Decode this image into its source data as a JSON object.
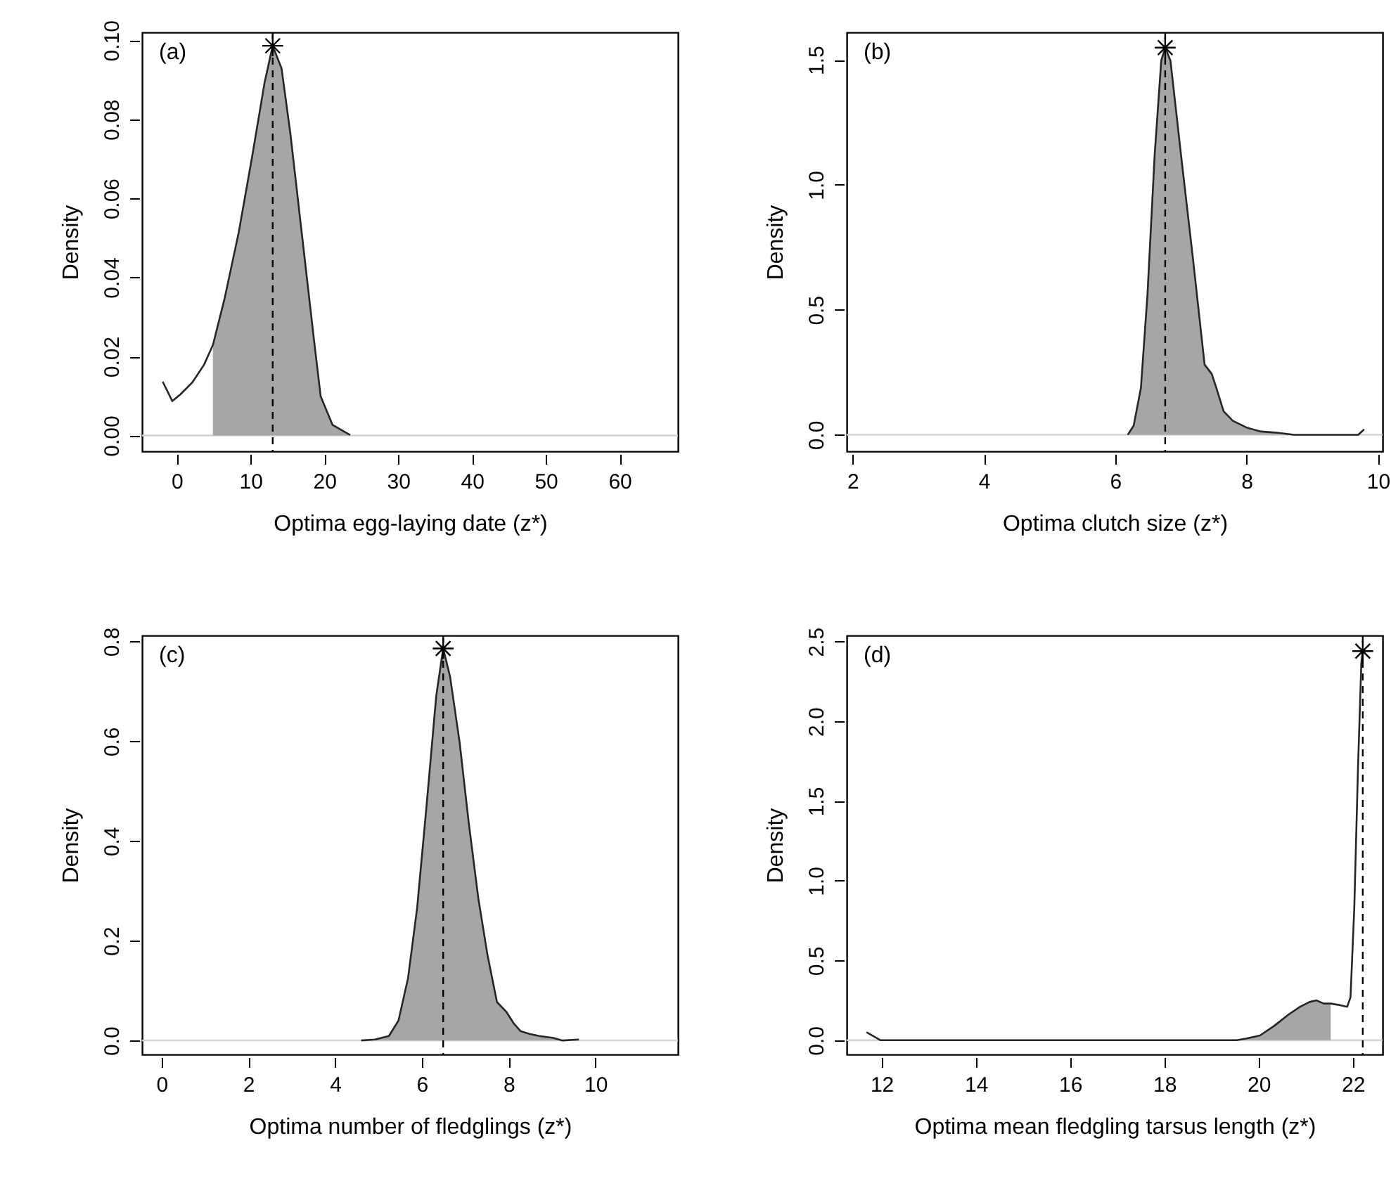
{
  "chart_data": [
    {
      "type": "line",
      "xlabel": "Optima egg-laying date (z*)",
      "ylabel": "Density",
      "annotations": [
        "(a)"
      ],
      "xlim": [
        -4.7,
        67.9
      ],
      "xticks": [
        0,
        10,
        20,
        30,
        40,
        50,
        60
      ],
      "ylim": [
        -0.004,
        0.102
      ],
      "yticks": [
        {
          "value": 0,
          "label": "0.00"
        },
        {
          "value": 0.02,
          "label": "0.02"
        },
        {
          "value": 0.04,
          "label": "0.04"
        },
        {
          "value": 0.06,
          "label": "0.06"
        },
        {
          "value": 0.08,
          "label": "0.08"
        },
        {
          "value": 0.1,
          "label": "0.10"
        }
      ],
      "series": [
        {
          "type": "area",
          "color": "#a6a6a6",
          "x": [
            4.9,
            6.5,
            8.4,
            10.3,
            11.9,
            13.0,
            14.2,
            15.4,
            17.0,
            18.6,
            19.5,
            21.1,
            23.5
          ],
          "values": [
            0.0229,
            0.0348,
            0.0514,
            0.0715,
            0.0893,
            0.0986,
            0.0929,
            0.0763,
            0.0502,
            0.0241,
            0.0099,
            0.0027,
            0.0001
          ]
        },
        {
          "type": "line",
          "color": "#262626",
          "x": [
            -1.9,
            -0.6,
            0.5,
            2.1,
            3.7,
            4.9,
            6.5,
            8.4,
            10.3,
            11.9,
            13.0,
            14.2,
            15.4,
            17.0,
            18.6,
            19.5,
            21.1,
            23.5
          ],
          "values": [
            0.0136,
            0.0087,
            0.0104,
            0.0134,
            0.0179,
            0.0229,
            0.0348,
            0.0514,
            0.0715,
            0.0893,
            0.0986,
            0.0929,
            0.0763,
            0.0502,
            0.0241,
            0.0099,
            0.0027,
            0.0001
          ]
        },
        {
          "type": "scatter",
          "marker": "cross",
          "color": "#000000",
          "x": [
            13.0
          ],
          "values": [
            0.0986
          ]
        }
      ],
      "ref_lines": [
        {
          "axis": "x",
          "value": 13.0,
          "line_style": "dashed",
          "color": "#000000"
        },
        {
          "axis": "y",
          "value": 0,
          "color": "#d3d3d3"
        }
      ]
    },
    {
      "type": "line",
      "xlabel": "Optima clutch size (z*)",
      "ylabel": "Density",
      "annotations": [
        "(b)"
      ],
      "xlim": [
        1.91,
        10.07
      ],
      "xticks": [
        2,
        4,
        6,
        8,
        10
      ],
      "ylim": [
        -0.066,
        1.61
      ],
      "yticks": [
        {
          "value": 0,
          "label": "0.0"
        },
        {
          "value": 0.5,
          "label": "0.5"
        },
        {
          "value": 1,
          "label": "1.0"
        },
        {
          "value": 1.5,
          "label": "1.5"
        }
      ],
      "series": [
        {
          "type": "area",
          "color": "#a6a6a6",
          "x": [
            6.19,
            6.28,
            6.39,
            6.49,
            6.6,
            6.7,
            6.76,
            6.84,
            7.0,
            7.18,
            7.36,
            7.47,
            7.54,
            7.65,
            7.79,
            8.01,
            8.22,
            8.44,
            8.72,
            9.01,
            9.37,
            9.7
          ],
          "values": [
            0,
            0.037,
            0.187,
            0.561,
            1.122,
            1.497,
            1.549,
            1.497,
            1.122,
            0.711,
            0.281,
            0.243,
            0.187,
            0.094,
            0.056,
            0.028,
            0.013,
            0.009,
            0,
            0,
            0,
            0
          ]
        },
        {
          "type": "line",
          "color": "#262626",
          "x": [
            6.19,
            6.28,
            6.39,
            6.49,
            6.6,
            6.7,
            6.76,
            6.84,
            7.0,
            7.18,
            7.36,
            7.47,
            7.54,
            7.65,
            7.79,
            8.01,
            8.22,
            8.44,
            8.72,
            9.01,
            9.37,
            9.7,
            9.79
          ],
          "values": [
            0,
            0.037,
            0.187,
            0.561,
            1.122,
            1.497,
            1.549,
            1.497,
            1.122,
            0.711,
            0.281,
            0.243,
            0.187,
            0.094,
            0.056,
            0.028,
            0.013,
            0.009,
            0,
            0,
            0,
            0,
            0.022
          ]
        },
        {
          "type": "scatter",
          "marker": "cross",
          "color": "#000000",
          "x": [
            6.76
          ],
          "values": [
            1.549
          ]
        }
      ],
      "ref_lines": [
        {
          "axis": "x",
          "value": 6.76,
          "line_style": "dashed",
          "color": "#000000"
        },
        {
          "axis": "y",
          "value": 0,
          "color": "#d3d3d3"
        }
      ]
    },
    {
      "type": "line",
      "xlabel": "Optima number of fledglings (z*)",
      "ylabel": "Density",
      "annotations": [
        "(c)"
      ],
      "xlim": [
        -0.45,
        11.9
      ],
      "xticks": [
        0,
        2,
        4,
        6,
        8,
        10
      ],
      "ylim": [
        -0.028,
        0.812
      ],
      "yticks": [
        {
          "value": 0,
          "label": "0.0"
        },
        {
          "value": 0.2,
          "label": "0.2"
        },
        {
          "value": 0.4,
          "label": "0.4"
        },
        {
          "value": 0.6,
          "label": "0.6"
        },
        {
          "value": 0.8,
          "label": "0.8"
        }
      ],
      "series": [
        {
          "type": "area",
          "color": "#a6a6a6",
          "x": [
            4.92,
            5.24,
            5.46,
            5.68,
            5.89,
            6.11,
            6.33,
            6.49,
            6.65,
            6.87,
            7.08,
            7.3,
            7.51,
            7.73,
            7.95,
            8.11,
            8.27,
            8.49,
            8.7,
            9.03,
            9.24
          ],
          "values": [
            0.002,
            0.009,
            0.04,
            0.125,
            0.266,
            0.474,
            0.691,
            0.786,
            0.729,
            0.597,
            0.436,
            0.285,
            0.172,
            0.077,
            0.057,
            0.035,
            0.019,
            0.013,
            0.009,
            0.005,
            0
          ]
        },
        {
          "type": "line",
          "color": "#262626",
          "x": [
            4.6,
            4.92,
            5.24,
            5.46,
            5.68,
            5.89,
            6.11,
            6.33,
            6.49,
            6.65,
            6.87,
            7.08,
            7.3,
            7.51,
            7.73,
            7.95,
            8.11,
            8.27,
            8.49,
            8.7,
            9.03,
            9.24,
            9.62
          ],
          "values": [
            0,
            0.002,
            0.009,
            0.04,
            0.125,
            0.266,
            0.474,
            0.691,
            0.786,
            0.729,
            0.597,
            0.436,
            0.285,
            0.172,
            0.077,
            0.057,
            0.035,
            0.019,
            0.013,
            0.009,
            0.005,
            0,
            0.002
          ]
        },
        {
          "type": "scatter",
          "marker": "cross",
          "color": "#000000",
          "x": [
            6.49
          ],
          "values": [
            0.786
          ]
        }
      ],
      "ref_lines": [
        {
          "axis": "x",
          "value": 6.49,
          "line_style": "dashed",
          "color": "#000000"
        },
        {
          "axis": "y",
          "value": 0,
          "color": "#d3d3d3"
        }
      ]
    },
    {
      "type": "line",
      "xlabel": "Optima mean fledgling tarsus length (z*)",
      "ylabel": "Density",
      "annotations": [
        "(d)"
      ],
      "xlim": [
        11.26,
        22.63
      ],
      "xticks": [
        12,
        14,
        16,
        18,
        20,
        22
      ],
      "ylim": [
        -0.089,
        2.538
      ],
      "yticks": [
        {
          "value": 0,
          "label": "0.0"
        },
        {
          "value": 0.5,
          "label": "0.5"
        },
        {
          "value": 1,
          "label": "1.0"
        },
        {
          "value": 1.5,
          "label": "1.5"
        },
        {
          "value": 2,
          "label": "2.0"
        },
        {
          "value": 2.5,
          "label": "2.5"
        }
      ],
      "series": [
        {
          "type": "area",
          "color": "#a6a6a6",
          "x": [
            19.53,
            19.73,
            20.03,
            20.33,
            20.63,
            20.88,
            21.08,
            21.23,
            21.38,
            21.53
          ],
          "values": [
            0,
            0.01,
            0.03,
            0.09,
            0.16,
            0.21,
            0.24,
            0.25,
            0.23,
            0.23
          ]
        },
        {
          "type": "line",
          "color": "#262626",
          "x": [
            11.68,
            11.98,
            13.63,
            16.63,
            19.53,
            19.73,
            20.03,
            20.33,
            20.63,
            20.88,
            21.08,
            21.23,
            21.38,
            21.53,
            21.73,
            21.88,
            21.95,
            22.03,
            22.11,
            22.18,
            22.21
          ],
          "values": [
            0.05,
            0,
            0,
            0,
            0,
            0.01,
            0.03,
            0.09,
            0.16,
            0.21,
            0.24,
            0.25,
            0.23,
            0.23,
            0.22,
            0.21,
            0.27,
            0.83,
            1.72,
            2.37,
            2.44
          ]
        },
        {
          "type": "scatter",
          "marker": "cross",
          "color": "#000000",
          "x": [
            22.21
          ],
          "values": [
            2.44
          ]
        }
      ],
      "ref_lines": [
        {
          "axis": "x",
          "value": 22.21,
          "line_style": "dashed",
          "color": "#000000"
        },
        {
          "axis": "y",
          "value": 0,
          "color": "#d3d3d3"
        }
      ]
    }
  ]
}
